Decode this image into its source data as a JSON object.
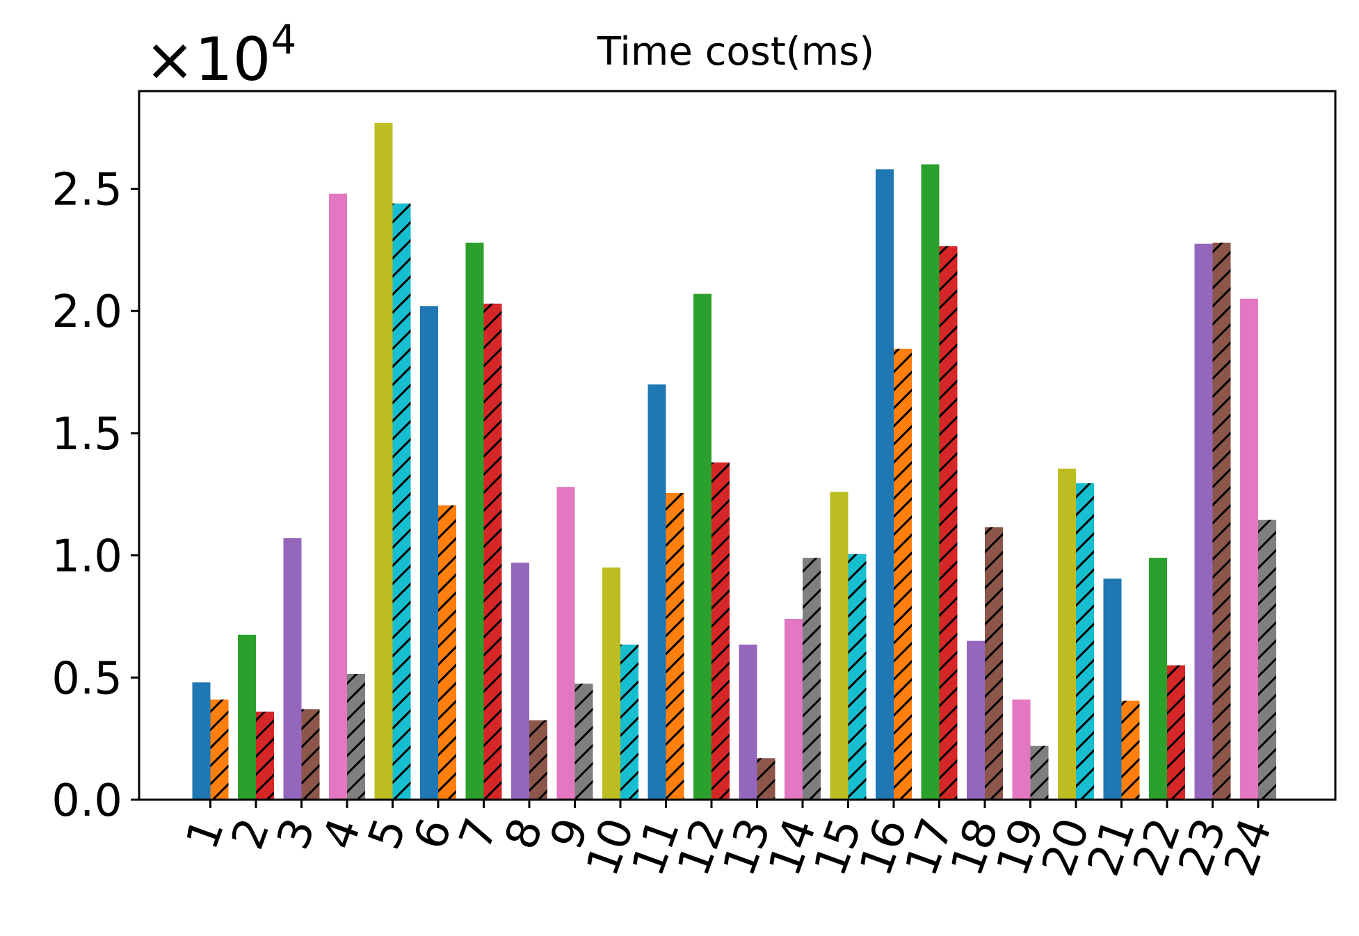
{
  "chart_data": {
    "type": "bar",
    "title": "Time cost(ms)",
    "offset_label": "×10",
    "offset_exponent": "4",
    "xlabel": "",
    "ylabel": "",
    "ylim": [
      0,
      29000
    ],
    "y_ticks": [
      0,
      5000,
      10000,
      15000,
      20000,
      25000
    ],
    "y_tick_labels": [
      "0.0",
      "0.5",
      "1.0",
      "1.5",
      "2.0",
      "2.5"
    ],
    "grid": false,
    "legend": "none",
    "categories": [
      "1",
      "2",
      "3",
      "4",
      "5",
      "6",
      "7",
      "8",
      "9",
      "10",
      "11",
      "12",
      "13",
      "14",
      "15",
      "16",
      "17",
      "18",
      "19",
      "20",
      "21",
      "22",
      "23",
      "24"
    ],
    "series": [
      {
        "name": "solid",
        "hatch": false,
        "values": [
          4800,
          6750,
          10700,
          24800,
          27700,
          20200,
          22800,
          9700,
          12800,
          9500,
          17000,
          20700,
          6350,
          7400,
          12600,
          25800,
          26000,
          6500,
          4100,
          13550,
          9050,
          9900,
          22750,
          20500
        ],
        "colors": [
          "#1f77b4",
          "#2ca02c",
          "#9467bd",
          "#e377c2",
          "#bcbd22",
          "#1f77b4",
          "#2ca02c",
          "#9467bd",
          "#e377c2",
          "#bcbd22",
          "#1f77b4",
          "#2ca02c",
          "#9467bd",
          "#e377c2",
          "#bcbd22",
          "#1f77b4",
          "#2ca02c",
          "#9467bd",
          "#e377c2",
          "#bcbd22",
          "#1f77b4",
          "#2ca02c",
          "#9467bd",
          "#e377c2"
        ]
      },
      {
        "name": "hatched",
        "hatch": true,
        "values": [
          4100,
          3600,
          3700,
          5150,
          24400,
          12050,
          20300,
          3250,
          4750,
          6350,
          12550,
          13800,
          1700,
          9900,
          10050,
          18450,
          22650,
          11150,
          2200,
          12950,
          4050,
          5500,
          22800,
          11450
        ],
        "colors": [
          "#ff7f0e",
          "#d62728",
          "#8c564b",
          "#7f7f7f",
          "#17becf",
          "#ff7f0e",
          "#d62728",
          "#8c564b",
          "#7f7f7f",
          "#17becf",
          "#ff7f0e",
          "#d62728",
          "#8c564b",
          "#7f7f7f",
          "#17becf",
          "#ff7f0e",
          "#d62728",
          "#8c564b",
          "#7f7f7f",
          "#17becf",
          "#ff7f0e",
          "#d62728",
          "#8c564b",
          "#7f7f7f"
        ]
      }
    ]
  }
}
